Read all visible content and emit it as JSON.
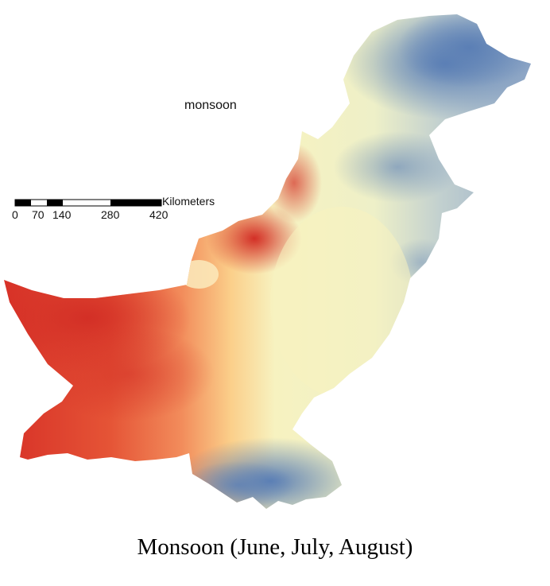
{
  "map": {
    "label": "monsoon",
    "caption": "Monsoon (June, July, August)",
    "color_ramp": [
      "#d73027",
      "#f46d43",
      "#fdae61",
      "#fee090",
      "#f7f2c0",
      "#abd9e9",
      "#91a8c9",
      "#5b7fb5"
    ]
  },
  "scale_bar": {
    "units": "Kilometers",
    "ticks": [
      "0",
      "70",
      "140",
      "280",
      "420"
    ]
  }
}
